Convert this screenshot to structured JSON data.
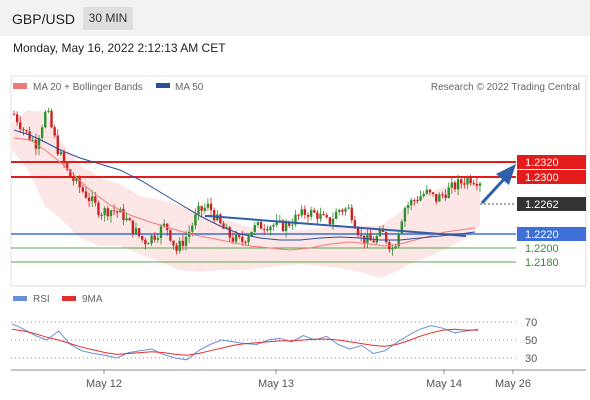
{
  "header": {
    "symbol": "GBP/USD",
    "timeframe": "30 MIN"
  },
  "timestamp": "Monday, May 16, 2022 2:12:13 AM CET",
  "legend": {
    "ma20_label": "MA 20 + Bollinger Bands",
    "ma50_label": "MA 50",
    "copyright": "Research © 2022 Trading Central"
  },
  "rsi_legend": {
    "rsi_label": "RSI",
    "ma_label": "9MA"
  },
  "colors": {
    "resistance": "#e41b1b",
    "pivot": "#3d6fd6",
    "support": "#5aa74f",
    "ma20": "#f07a7a",
    "ma50": "#2b4f9c",
    "band_fill": "#fde3e3",
    "up_candle": "#2f8f2f",
    "down_candle": "#cc2222",
    "rsi": "#6a8fd8",
    "rsi_ma": "#e03030",
    "trend_arrow": "#2e5fa8"
  },
  "chart_data": {
    "type": "candlestick",
    "symbol": "GBP/USD",
    "interval": "30 MIN",
    "price_range": [
      1.2145,
      1.2385
    ],
    "x_ticks": [
      "May 12",
      "May 13",
      "May 14",
      "May 26"
    ],
    "levels": [
      {
        "value": 1.232,
        "label": "1.2320",
        "kind": "resistance"
      },
      {
        "value": 1.23,
        "label": "1.2300",
        "kind": "resistance"
      },
      {
        "value": 1.2262,
        "label": "1.2262",
        "kind": "last"
      },
      {
        "value": 1.222,
        "label": "1.2220",
        "kind": "pivot"
      },
      {
        "value": 1.22,
        "label": "1.2200",
        "kind": "support"
      },
      {
        "value": 1.218,
        "label": "1.2180",
        "kind": "support"
      }
    ],
    "close_path": [
      1.234,
      1.232,
      1.2305,
      1.2345,
      1.23,
      1.227,
      1.2255,
      1.224,
      1.2225,
      1.2228,
      1.2222,
      1.2205,
      1.219,
      1.2198,
      1.221,
      1.218,
      1.2198,
      1.2225,
      1.2232,
      1.221,
      1.2195,
      1.219,
      1.2205,
      1.221,
      1.221,
      1.2208,
      1.2218,
      1.2225,
      1.2222,
      1.2212,
      1.2228,
      1.2228,
      1.2195,
      1.219,
      1.22,
      1.218,
      1.223,
      1.224,
      1.2248,
      1.224,
      1.225,
      1.2258,
      1.2265,
      1.2262
    ],
    "ma20": [
      1.23,
      1.228,
      1.2262,
      1.2248,
      1.2236,
      1.223,
      1.2222,
      1.2218,
      1.2216,
      1.2215,
      1.2212,
      1.221,
      1.221,
      1.2209,
      1.2208,
      1.221,
      1.2212,
      1.2214,
      1.2215,
      1.2216,
      1.2218,
      1.222,
      1.2219,
      1.2217,
      1.2216,
      1.222,
      1.2228,
      1.2238,
      1.2248
    ],
    "ma50": [
      1.231,
      1.229,
      1.227,
      1.2255,
      1.2245,
      1.2232,
      1.2225,
      1.222,
      1.2215,
      1.2212,
      1.221,
      1.2208,
      1.2207,
      1.2208,
      1.221,
      1.2212,
      1.2214,
      1.2216,
      1.2215,
      1.2214,
      1.2213,
      1.2214,
      1.2218,
      1.2222
    ],
    "trendline": [
      [
        1.224,
        0.33
      ],
      [
        1.2218,
        0.79
      ]
    ],
    "projection": {
      "from": 1.2262,
      "to": 1.232
    },
    "rsi": {
      "levels": [
        70,
        50,
        30
      ],
      "values": [
        68,
        62,
        55,
        50,
        60,
        45,
        38,
        35,
        33,
        30,
        36,
        38,
        40,
        34,
        30,
        28,
        38,
        45,
        50,
        48,
        46,
        45,
        50,
        52,
        48,
        55,
        50,
        54,
        45,
        40,
        44,
        35,
        38,
        47,
        55,
        62,
        66,
        63,
        58,
        60,
        62
      ],
      "ma9": [
        62,
        60,
        57,
        53,
        50,
        46,
        42,
        39,
        36,
        34,
        35,
        36,
        37,
        36,
        34,
        33,
        35,
        38,
        41,
        44,
        46,
        47,
        48,
        49,
        49,
        50,
        51,
        51,
        50,
        48,
        46,
        44,
        43,
        45,
        49,
        54,
        58,
        61,
        62,
        61,
        61
      ]
    }
  }
}
